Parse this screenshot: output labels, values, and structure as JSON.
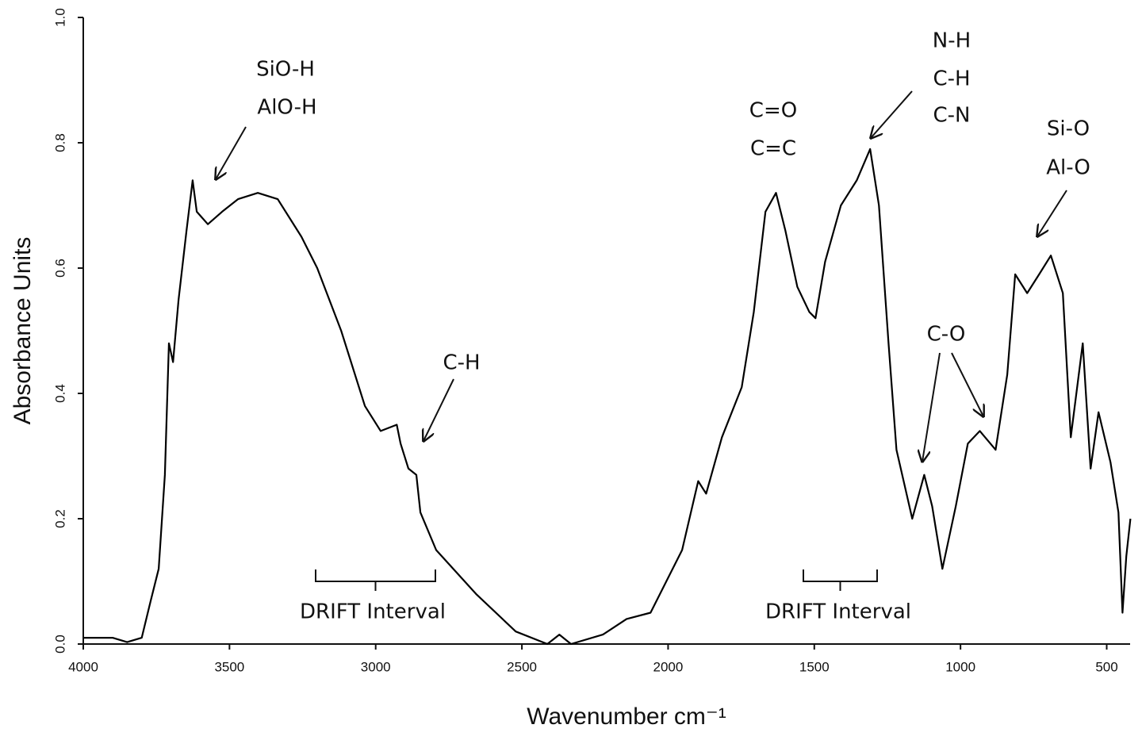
{
  "chart_data": {
    "type": "line",
    "xlabel": "Wavenumber cm⁻¹",
    "ylabel": "Absorbance Units",
    "xlim": [
      4000,
      420
    ],
    "ylim": [
      0,
      1
    ],
    "xticks": [
      4000,
      3500,
      3000,
      2500,
      2000,
      1500,
      1000,
      500
    ],
    "yticks": [
      {
        "value": 0,
        "label": "0.0"
      },
      0.2,
      0.4,
      0.6,
      0.8,
      {
        "value": 1,
        "label": "1.0"
      }
    ],
    "grid": false,
    "series": [
      {
        "color": "#000000",
        "x": [
          4000,
          3900,
          3850,
          3800,
          3769,
          3742,
          3721,
          3707,
          3693,
          3674,
          3647,
          3626,
          3612,
          3574,
          3525,
          3471,
          3403,
          3335,
          3254,
          3200,
          3118,
          3037,
          2983,
          2928,
          2915,
          2888,
          2861,
          2847,
          2793,
          2657,
          2521,
          2413,
          2372,
          2332,
          2223,
          2142,
          2060,
          2006,
          1952,
          1897,
          1870,
          1816,
          1748,
          1707,
          1667,
          1631,
          1599,
          1558,
          1517,
          1496,
          1463,
          1409,
          1355,
          1309,
          1279,
          1246,
          1219,
          1165,
          1124,
          1097,
          1062,
          1016,
          975,
          934,
          880,
          840,
          813,
          772,
          731,
          691,
          650,
          623,
          582,
          555,
          528,
          487,
          460,
          446,
          433,
          419
        ],
        "values": [
          0.01,
          0.01,
          0.003,
          0.01,
          0.07,
          0.12,
          0.27,
          0.48,
          0.45,
          0.55,
          0.66,
          0.74,
          0.69,
          0.67,
          0.69,
          0.71,
          0.72,
          0.71,
          0.65,
          0.6,
          0.5,
          0.38,
          0.34,
          0.35,
          0.32,
          0.28,
          0.27,
          0.21,
          0.15,
          0.08,
          0.02,
          0,
          0.015,
          0,
          0.015,
          0.04,
          0.05,
          0.1,
          0.15,
          0.26,
          0.24,
          0.33,
          0.41,
          0.53,
          0.69,
          0.72,
          0.66,
          0.57,
          0.53,
          0.52,
          0.61,
          0.7,
          0.74,
          0.79,
          0.7,
          0.48,
          0.31,
          0.2,
          0.27,
          0.22,
          0.12,
          0.22,
          0.32,
          0.34,
          0.31,
          0.43,
          0.59,
          0.56,
          0.59,
          0.62,
          0.56,
          0.33,
          0.48,
          0.28,
          0.37,
          0.29,
          0.21,
          0.05,
          0.14,
          0.2
        ]
      }
    ],
    "annotations": [
      "SiO-H",
      "AlO-H",
      "C-H",
      "C=O",
      "C=C",
      "N-H",
      "C-H",
      "C-N",
      "Si-O",
      "Al-O",
      "C-O",
      "DRIFT Interval",
      "DRIFT Interval"
    ]
  }
}
